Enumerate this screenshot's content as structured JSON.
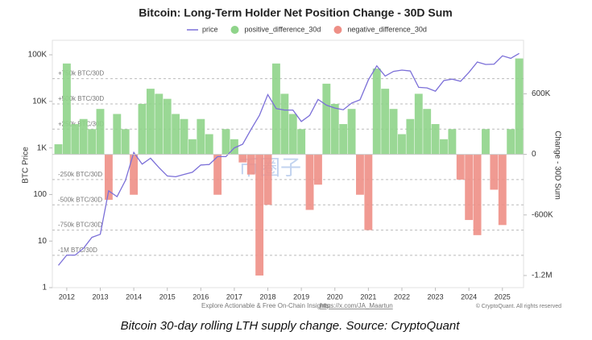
{
  "chart_data": {
    "type": "combo",
    "title": "Bitcoin: Long-Term Holder Net Position Change - 30D Sum",
    "y_label": "BTC Price",
    "y2_label": "Change - 30D Sum",
    "ylog": true,
    "x": [
      2011.75,
      2012,
      2012.25,
      2012.5,
      2012.75,
      2013,
      2013.25,
      2013.5,
      2013.75,
      2014,
      2014.25,
      2014.5,
      2014.75,
      2015,
      2015.25,
      2015.5,
      2015.75,
      2016,
      2016.25,
      2016.5,
      2016.75,
      2017,
      2017.25,
      2017.5,
      2017.75,
      2018,
      2018.25,
      2018.5,
      2018.75,
      2019,
      2019.25,
      2019.5,
      2019.75,
      2020,
      2020.25,
      2020.5,
      2020.75,
      2021,
      2021.25,
      2021.5,
      2021.75,
      2022,
      2022.25,
      2022.5,
      2022.75,
      2023,
      2023.25,
      2023.5,
      2023.75,
      2024,
      2024.25,
      2024.5,
      2024.75,
      2025,
      2025.25,
      2025.5
    ],
    "xlim": [
      2011.57,
      2025.63
    ],
    "xticks": [
      2012,
      2013,
      2014,
      2015,
      2016,
      2017,
      2018,
      2019,
      2020,
      2021,
      2022,
      2023,
      2024,
      2025
    ],
    "ylim": [
      1,
      205000
    ],
    "yticks": [
      1,
      10,
      100,
      {
        "value": 1000,
        "label": "1K"
      },
      {
        "value": 10000,
        "label": "10K"
      },
      {
        "value": 100000,
        "label": "100K"
      }
    ],
    "y2lim": [
      -1320000,
      1130000
    ],
    "y2ticks": [
      {
        "value": 600000,
        "label": "600K"
      },
      0,
      {
        "value": -600000,
        "label": "-600K"
      },
      {
        "value": -1200000,
        "label": "-1.2M"
      }
    ],
    "reference_lines": [
      {
        "value": 750000,
        "label": "+750k BTC/30D"
      },
      {
        "value": 500000,
        "label": "+500k BTC/30D"
      },
      {
        "value": 250000,
        "label": "+250k BTC/30D"
      },
      {
        "value": -250000,
        "label": "-250k BTC/30D"
      },
      {
        "value": -500000,
        "label": "-500k BTC/30D"
      },
      {
        "value": -750000,
        "label": "-750k BTC/30D"
      },
      {
        "value": -1000000,
        "label": "-1M BTC/30D"
      }
    ],
    "series": [
      {
        "name": "price",
        "type": "line",
        "color": "#7b6fd8",
        "values": [
          3,
          5,
          5,
          7,
          12,
          14,
          120,
          90,
          200,
          800,
          450,
          600,
          380,
          250,
          240,
          270,
          300,
          430,
          440,
          650,
          650,
          1000,
          1200,
          2500,
          5000,
          14000,
          7000,
          6500,
          6500,
          3700,
          5000,
          11000,
          8300,
          7200,
          6600,
          9200,
          10800,
          29000,
          58000,
          35000,
          44000,
          47000,
          45000,
          20000,
          19500,
          16500,
          28000,
          30000,
          27000,
          42000,
          70000,
          62000,
          63000,
          95000,
          84000,
          107000
        ]
      },
      {
        "name": "positive_difference_30d",
        "type": "bar",
        "axis": "y2",
        "color": "#8fd48a",
        "values": [
          100000,
          900000,
          300000,
          350000,
          250000,
          450000,
          null,
          400000,
          250000,
          null,
          500000,
          650000,
          600000,
          550000,
          400000,
          350000,
          150000,
          350000,
          200000,
          null,
          250000,
          150000,
          null,
          null,
          null,
          null,
          900000,
          600000,
          400000,
          250000,
          null,
          null,
          700000,
          500000,
          300000,
          450000,
          null,
          null,
          850000,
          650000,
          450000,
          200000,
          350000,
          600000,
          450000,
          300000,
          150000,
          250000,
          null,
          null,
          null,
          250000,
          null,
          null,
          250000,
          950000
        ]
      },
      {
        "name": "negative_difference_30d",
        "type": "bar",
        "axis": "y2",
        "color": "#ee8f86",
        "values": [
          null,
          null,
          null,
          null,
          null,
          null,
          -450000,
          null,
          null,
          -400000,
          null,
          null,
          null,
          null,
          null,
          null,
          null,
          null,
          null,
          -400000,
          null,
          null,
          -80000,
          -200000,
          -1200000,
          -500000,
          null,
          null,
          null,
          null,
          -550000,
          -300000,
          null,
          null,
          null,
          null,
          -400000,
          -750000,
          null,
          null,
          null,
          null,
          null,
          null,
          null,
          null,
          null,
          null,
          -250000,
          -650000,
          -800000,
          null,
          -350000,
          -700000,
          null,
          null
        ]
      }
    ]
  },
  "watermark": "币圈子",
  "footer": {
    "text": "Explore Actionable & Free On-Chain Insights:",
    "link": "https://x.com/JA_Maartun",
    "copyright": "© CryptoQuant. All rights reserved"
  },
  "caption": "Bitcoin 30-day rolling LTH supply change. Source: CryptoQuant"
}
